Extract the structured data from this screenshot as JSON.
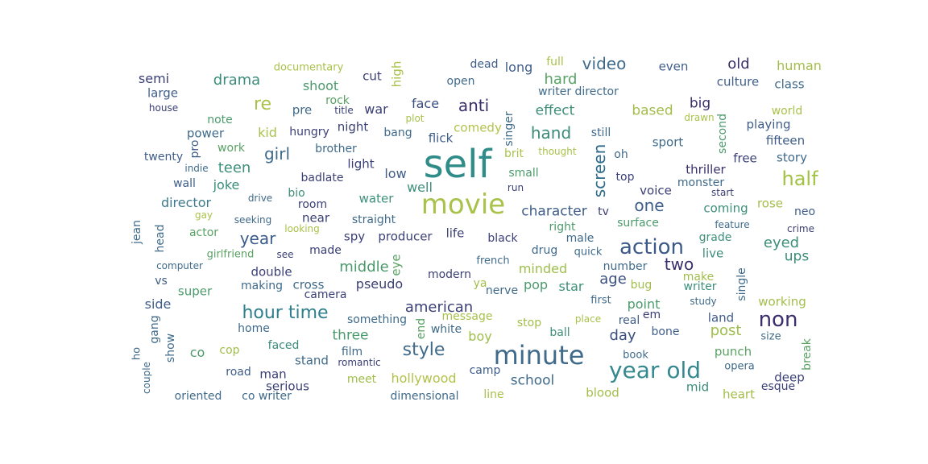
{
  "words": [
    {
      "text": "self",
      "color": "#2f8c89"
    },
    {
      "text": "movie",
      "color": "#a8c24a"
    },
    {
      "text": "minute",
      "color": "#3f6a8a"
    },
    {
      "text": "year old",
      "color": "#35898e"
    },
    {
      "text": "action",
      "color": "#3c5a89"
    },
    {
      "text": "hour time",
      "color": "#2f7f8e"
    },
    {
      "text": "half",
      "color": "#a2c243"
    },
    {
      "text": "non",
      "color": "#3c2e6e"
    },
    {
      "text": "style",
      "color": "#3f6a8a"
    },
    {
      "text": "video",
      "color": "#3f6a8a"
    },
    {
      "text": "anti",
      "color": "#3a2f6b"
    },
    {
      "text": "screen",
      "color": "#2f6b8a"
    },
    {
      "text": "re",
      "color": "#a8c24a"
    },
    {
      "text": "two",
      "color": "#3a2f6b"
    },
    {
      "text": "drama",
      "color": "#3a8c79"
    },
    {
      "text": "girl",
      "color": "#3f6a8a"
    },
    {
      "text": "teen",
      "color": "#3d8f7a"
    },
    {
      "text": "hand",
      "color": "#3a8c79"
    },
    {
      "text": "one",
      "color": "#3f5d89"
    },
    {
      "text": "year",
      "color": "#3a5a89"
    },
    {
      "text": "old",
      "color": "#3a2f6b"
    },
    {
      "text": "hard",
      "color": "#5aa164"
    },
    {
      "text": "effect",
      "color": "#3d8f7a"
    },
    {
      "text": "based",
      "color": "#a3bd4a"
    },
    {
      "text": "big",
      "color": "#3a2f6b"
    },
    {
      "text": "eyed",
      "color": "#3d8f7a"
    },
    {
      "text": "ups",
      "color": "#3a8c79"
    },
    {
      "text": "american",
      "color": "#3a3f75"
    },
    {
      "text": "middle",
      "color": "#4b9a6c"
    },
    {
      "text": "age",
      "color": "#3a4f80"
    },
    {
      "text": "day",
      "color": "#3a4f80"
    },
    {
      "text": "post",
      "color": "#9fbe4b"
    },
    {
      "text": "character",
      "color": "#3f5d89"
    },
    {
      "text": "three",
      "color": "#4b9a6c"
    },
    {
      "text": "hollywood",
      "color": "#b3c24a"
    },
    {
      "text": "school",
      "color": "#3f6a8a"
    },
    {
      "text": "pseudo",
      "color": "#3a3f75"
    },
    {
      "text": "comedy",
      "color": "#b3c24a"
    },
    {
      "text": "director",
      "color": "#3f7a8e"
    },
    {
      "text": "minded",
      "color": "#9fbe4b"
    },
    {
      "text": "pop",
      "color": "#4b9a6c"
    },
    {
      "text": "star",
      "color": "#3d8f7a"
    },
    {
      "text": "well",
      "color": "#3d8f7a"
    },
    {
      "text": "kid",
      "color": "#a8c24a"
    },
    {
      "text": "joke",
      "color": "#3a8c79"
    },
    {
      "text": "face",
      "color": "#3a4f80"
    },
    {
      "text": "shoot",
      "color": "#4b9a6c"
    },
    {
      "text": "thriller",
      "color": "#3a2f6b"
    },
    {
      "text": "human",
      "color": "#a3bd4a"
    },
    {
      "text": "semi",
      "color": "#3a3f75"
    },
    {
      "text": "long",
      "color": "#3f5d89"
    },
    {
      "text": "full",
      "color": "#a8c24a"
    },
    {
      "text": "large",
      "color": "#3f5d89"
    },
    {
      "text": "low",
      "color": "#3f5d89"
    },
    {
      "text": "water",
      "color": "#3d8f7a"
    },
    {
      "text": "cross",
      "color": "#3f6a8a"
    },
    {
      "text": "double",
      "color": "#3a3f75"
    },
    {
      "text": "producer",
      "color": "#3a3f75"
    },
    {
      "text": "life",
      "color": "#3a3f75"
    },
    {
      "text": "spy",
      "color": "#3a3f75"
    },
    {
      "text": "near",
      "color": "#3a3f75"
    },
    {
      "text": "coming",
      "color": "#3d8f7a"
    },
    {
      "text": "voice",
      "color": "#3a3f75"
    },
    {
      "text": "point",
      "color": "#4b9a6c"
    },
    {
      "text": "side",
      "color": "#3f5d89"
    },
    {
      "text": "war",
      "color": "#3a3f75"
    },
    {
      "text": "light",
      "color": "#3a3f75"
    },
    {
      "text": "flick",
      "color": "#3f5d89"
    },
    {
      "text": "sport",
      "color": "#3f6a8a"
    },
    {
      "text": "co",
      "color": "#4b9a6c"
    },
    {
      "text": "boy",
      "color": "#9fbe4b"
    },
    {
      "text": "film",
      "color": "#3f6a8a"
    },
    {
      "text": "man",
      "color": "#3a3f75"
    },
    {
      "text": "serious",
      "color": "#3a3f75"
    },
    {
      "text": "stand",
      "color": "#3f6a8a"
    },
    {
      "text": "meet",
      "color": "#9fbe4b"
    },
    {
      "text": "dimensional",
      "color": "#3f6a8a"
    },
    {
      "text": "line",
      "color": "#a8c24a"
    },
    {
      "text": "blood",
      "color": "#a3bd4a"
    },
    {
      "text": "heart",
      "color": "#a3bd4a"
    },
    {
      "text": "mid",
      "color": "#3a8c79"
    },
    {
      "text": "punch",
      "color": "#5aa164"
    },
    {
      "text": "deep",
      "color": "#3a3f75"
    },
    {
      "text": "esque",
      "color": "#3a3f75"
    },
    {
      "text": "working",
      "color": "#a3bd4a"
    },
    {
      "text": "land",
      "color": "#3f5d89"
    },
    {
      "text": "bone",
      "color": "#3f5d89"
    },
    {
      "text": "rose",
      "color": "#a3bd4a"
    },
    {
      "text": "neo",
      "color": "#3f5d89"
    },
    {
      "text": "grade",
      "color": "#3d8f7a"
    },
    {
      "text": "live",
      "color": "#3a8c79"
    },
    {
      "text": "make",
      "color": "#a3bd4a"
    },
    {
      "text": "writer",
      "color": "#3d8f7a"
    },
    {
      "text": "surface",
      "color": "#4b9a6c"
    },
    {
      "text": "monster",
      "color": "#3f6a8a"
    },
    {
      "text": "free",
      "color": "#3a3f75"
    },
    {
      "text": "story",
      "color": "#3f6a8a"
    },
    {
      "text": "fifteen",
      "color": "#3f5d89"
    },
    {
      "text": "playing",
      "color": "#3f5d89"
    },
    {
      "text": "world",
      "color": "#a8c24a"
    },
    {
      "text": "culture",
      "color": "#3f5d89"
    },
    {
      "text": "class",
      "color": "#3f6a8a"
    },
    {
      "text": "even",
      "color": "#3f5d89"
    },
    {
      "text": "writer director",
      "color": "#3f6a8a"
    },
    {
      "text": "open",
      "color": "#3f6a8a"
    },
    {
      "text": "dead",
      "color": "#3f5d89"
    },
    {
      "text": "cut",
      "color": "#3a3f75"
    },
    {
      "text": "rock",
      "color": "#5aa164"
    },
    {
      "text": "pre",
      "color": "#3f6a8a"
    },
    {
      "text": "night",
      "color": "#3a3f75"
    },
    {
      "text": "hungry",
      "color": "#3a3f75"
    },
    {
      "text": "bang",
      "color": "#3f6a8a"
    },
    {
      "text": "brother",
      "color": "#3f6a8a"
    },
    {
      "text": "power",
      "color": "#3f6a8a"
    },
    {
      "text": "note",
      "color": "#4b9a6c"
    },
    {
      "text": "work",
      "color": "#5aa164"
    },
    {
      "text": "twenty",
      "color": "#3f5d89"
    },
    {
      "text": "indie",
      "color": "#3f6a8a"
    },
    {
      "text": "wall",
      "color": "#3f5d89"
    },
    {
      "text": "badlate",
      "color": "#3a3f75"
    },
    {
      "text": "bio",
      "color": "#3d8f7a"
    },
    {
      "text": "room",
      "color": "#3a3f75"
    },
    {
      "text": "straight",
      "color": "#3f6a8a"
    },
    {
      "text": "actor",
      "color": "#5aa164"
    },
    {
      "text": "made",
      "color": "#3a3f75"
    },
    {
      "text": "making",
      "color": "#3f6a8a"
    },
    {
      "text": "super",
      "color": "#4b9a6c"
    },
    {
      "text": "vs",
      "color": "#3f5d89"
    },
    {
      "text": "home",
      "color": "#3f6a8a"
    },
    {
      "text": "faced",
      "color": "#3a8c79"
    },
    {
      "text": "cop",
      "color": "#9fbe4b"
    },
    {
      "text": "road",
      "color": "#3f5d89"
    },
    {
      "text": "oriented",
      "color": "#3f6a8a"
    },
    {
      "text": "co writer",
      "color": "#3f6a8a"
    },
    {
      "text": "camp",
      "color": "#3f5d89"
    },
    {
      "text": "something",
      "color": "#3f6a8a"
    },
    {
      "text": "white",
      "color": "#3f6a8a"
    },
    {
      "text": "modern",
      "color": "#3a3f75"
    },
    {
      "text": "black",
      "color": "#3a3f75"
    },
    {
      "text": "drug",
      "color": "#3f6a8a"
    },
    {
      "text": "nerve",
      "color": "#3f6a8a"
    },
    {
      "text": "camera",
      "color": "#3a3f75"
    },
    {
      "text": "message",
      "color": "#a8c24a"
    },
    {
      "text": "stop",
      "color": "#a3bd4a"
    },
    {
      "text": "ball",
      "color": "#3d8f7a"
    },
    {
      "text": "real",
      "color": "#3f5d89"
    },
    {
      "text": "em",
      "color": "#3a3f75"
    },
    {
      "text": "book",
      "color": "#3f6a8a"
    },
    {
      "text": "first",
      "color": "#3f6a8a"
    },
    {
      "text": "study",
      "color": "#3f6a8a"
    },
    {
      "text": "size",
      "color": "#3f6a8a"
    },
    {
      "text": "opera",
      "color": "#3f6a8a"
    },
    {
      "text": "number",
      "color": "#3f6a8a"
    },
    {
      "text": "bug",
      "color": "#a3bd4a"
    },
    {
      "text": "quick",
      "color": "#3f6a8a"
    },
    {
      "text": "male",
      "color": "#3f6a8a"
    },
    {
      "text": "right",
      "color": "#4b9a6c"
    },
    {
      "text": "tv",
      "color": "#3a3f75"
    },
    {
      "text": "top",
      "color": "#3a3f75"
    },
    {
      "text": "oh",
      "color": "#3f6a8a"
    },
    {
      "text": "still",
      "color": "#3f6a8a"
    },
    {
      "text": "small",
      "color": "#4b9a6c"
    },
    {
      "text": "brit",
      "color": "#a8c24a"
    },
    {
      "text": "thought",
      "color": "#a8c24a"
    },
    {
      "text": "run",
      "color": "#3a3f75"
    },
    {
      "text": "french",
      "color": "#3f6a8a"
    },
    {
      "text": "ya",
      "color": "#a3bd4a"
    },
    {
      "text": "start",
      "color": "#3a3f75"
    },
    {
      "text": "feature",
      "color": "#3f6a8a"
    },
    {
      "text": "crime",
      "color": "#3a3f75"
    },
    {
      "text": "drawn",
      "color": "#a8c24a"
    },
    {
      "text": "documentary",
      "color": "#a8c24a"
    },
    {
      "text": "house",
      "color": "#3a3f75"
    },
    {
      "text": "title",
      "color": "#3a3f75"
    },
    {
      "text": "plot",
      "color": "#a8c24a"
    },
    {
      "text": "gay",
      "color": "#a8c24a"
    },
    {
      "text": "drive",
      "color": "#3f6a8a"
    },
    {
      "text": "seeking",
      "color": "#3f6a8a"
    },
    {
      "text": "looking",
      "color": "#a8c24a"
    },
    {
      "text": "girlfriend",
      "color": "#5aa164"
    },
    {
      "text": "see",
      "color": "#3a3f75"
    },
    {
      "text": "computer",
      "color": "#3f6a8a"
    },
    {
      "text": "romantic",
      "color": "#3a3f75"
    },
    {
      "text": "place",
      "color": "#a8c24a"
    },
    {
      "text": "high",
      "color": "#a8c24a"
    },
    {
      "text": "singer",
      "color": "#3f6a8a"
    },
    {
      "text": "second",
      "color": "#4b9a6c"
    },
    {
      "text": "pro",
      "color": "#3f5d89"
    },
    {
      "text": "jean",
      "color": "#3f6a8a"
    },
    {
      "text": "head",
      "color": "#3f6a8a"
    },
    {
      "text": "eye",
      "color": "#5aa164"
    },
    {
      "text": "single",
      "color": "#3f6a8a"
    },
    {
      "text": "gang",
      "color": "#3f6a8a"
    },
    {
      "text": "show",
      "color": "#3f6a8a"
    },
    {
      "text": "ho",
      "color": "#3f6a8a"
    },
    {
      "text": "couple",
      "color": "#3f6a8a"
    },
    {
      "text": "end",
      "color": "#5aa164"
    },
    {
      "text": "break",
      "color": "#5aa164"
    }
  ]
}
